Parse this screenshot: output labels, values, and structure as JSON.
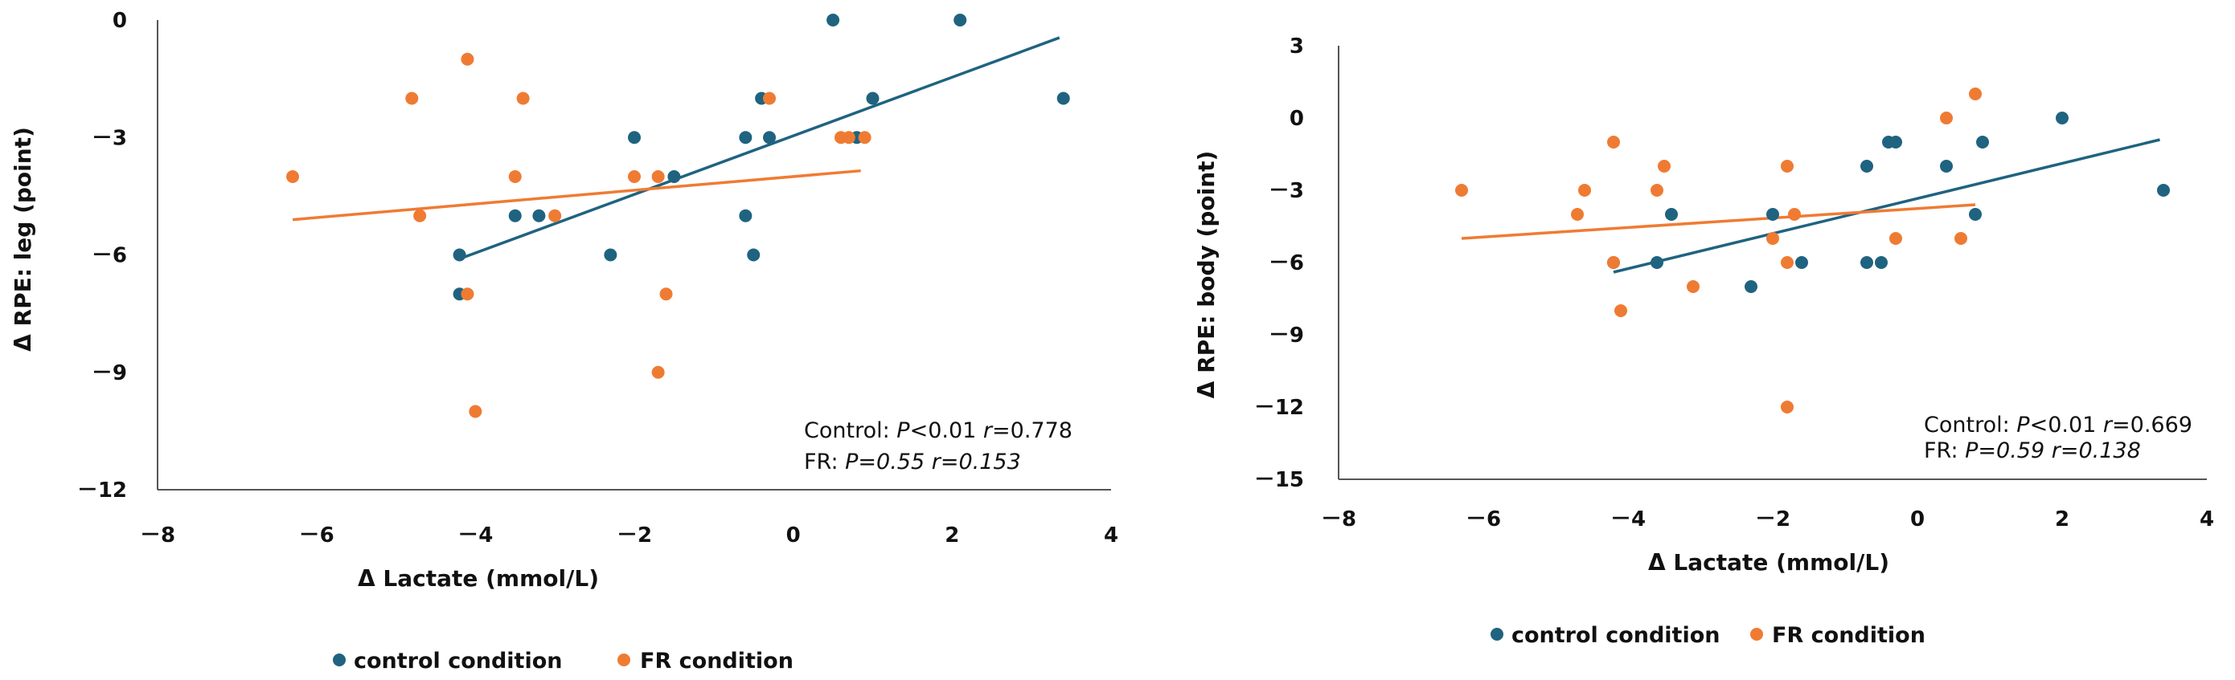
{
  "colors": {
    "control": "#1f6380",
    "fr": "#ef7b33",
    "axis": "#555555",
    "text": "#111111"
  },
  "chart_data": [
    {
      "type": "scatter",
      "xlabel": "Δ Lactate (mmol/L)",
      "ylabel": "Δ RPE: leg (point)",
      "xlim": [
        -8,
        4
      ],
      "ylim": [
        -12,
        0
      ],
      "xticks": [
        -8,
        -6,
        -4,
        -2,
        0,
        2,
        4
      ],
      "xtick_labels": [
        "－8",
        "－6",
        "－4",
        "－2",
        "0",
        "2",
        "4"
      ],
      "yticks": [
        0,
        -3,
        -6,
        -9,
        -12
      ],
      "ytick_labels": [
        "0",
        "－3",
        "－6",
        "－9",
        "－12"
      ],
      "legend": {
        "position": "bottom",
        "items": [
          "control condition",
          "FR condition"
        ]
      },
      "stats": {
        "control": {
          "prefix": "Control: ",
          "p_label": "P",
          "p_val": "<0.01 ",
          "r_label": "r",
          "r_val": "=0.778"
        },
        "fr": {
          "prefix": "FR: ",
          "text": "P=0.55 r=0.153"
        }
      },
      "series": [
        {
          "name": "control condition",
          "points": [
            [
              0.5,
              0
            ],
            [
              2.1,
              0
            ],
            [
              3.4,
              -2
            ],
            [
              1.0,
              -2
            ],
            [
              -0.4,
              -2
            ],
            [
              -2.0,
              -3
            ],
            [
              -0.6,
              -3
            ],
            [
              -0.3,
              -3
            ],
            [
              0.8,
              -3
            ],
            [
              -1.5,
              -4
            ],
            [
              -3.5,
              -5
            ],
            [
              -3.2,
              -5
            ],
            [
              -0.6,
              -5
            ],
            [
              -4.2,
              -6
            ],
            [
              -2.3,
              -6
            ],
            [
              -0.5,
              -6
            ],
            [
              -4.2,
              -7
            ]
          ],
          "trend": [
            [
              -4.2,
              -6.1
            ],
            [
              3.35,
              -0.45
            ]
          ]
        },
        {
          "name": "FR condition",
          "points": [
            [
              -4.1,
              -1
            ],
            [
              -4.8,
              -2
            ],
            [
              -3.4,
              -2
            ],
            [
              -0.3,
              -2
            ],
            [
              0.6,
              -3
            ],
            [
              0.7,
              -3
            ],
            [
              0.9,
              -3
            ],
            [
              -6.3,
              -4
            ],
            [
              -3.5,
              -4
            ],
            [
              -2.0,
              -4
            ],
            [
              -1.7,
              -4
            ],
            [
              -4.7,
              -5
            ],
            [
              -3.0,
              -5
            ],
            [
              -4.1,
              -7
            ],
            [
              -1.6,
              -7
            ],
            [
              -1.7,
              -9
            ],
            [
              -4.0,
              -10
            ]
          ],
          "trend": [
            [
              -6.3,
              -5.1
            ],
            [
              0.85,
              -3.85
            ]
          ]
        }
      ]
    },
    {
      "type": "scatter",
      "xlabel": "Δ Lactate (mmol/L)",
      "ylabel": "Δ RPE: body (point)",
      "xlim": [
        -8,
        4
      ],
      "ylim": [
        -15,
        3
      ],
      "xticks": [
        -8,
        -6,
        -4,
        -2,
        0,
        2,
        4
      ],
      "xtick_labels": [
        "－8",
        "－6",
        "－4",
        "－2",
        "0",
        "2",
        "4"
      ],
      "yticks": [
        3,
        0,
        -3,
        -6,
        -9,
        -12,
        -15
      ],
      "ytick_labels": [
        "3",
        "0",
        "－3",
        "－6",
        "－9",
        "－12",
        "－15"
      ],
      "legend": {
        "position": "bottom",
        "items": [
          "control condition",
          "FR condition"
        ]
      },
      "stats": {
        "control": {
          "prefix": "Control: ",
          "p_label": "P",
          "p_val": "<0.01 ",
          "r_label": "r",
          "r_val": "=0.669"
        },
        "fr": {
          "prefix": "FR: ",
          "text": "P=0.59 r=0.138"
        }
      },
      "series": [
        {
          "name": "control condition",
          "points": [
            [
              2.0,
              0
            ],
            [
              -0.4,
              -1
            ],
            [
              -0.3,
              -1
            ],
            [
              0.9,
              -1
            ],
            [
              -0.7,
              -2
            ],
            [
              0.4,
              -2
            ],
            [
              3.4,
              -3
            ],
            [
              -3.4,
              -4
            ],
            [
              -2.0,
              -4
            ],
            [
              0.8,
              -4
            ],
            [
              -4.2,
              -6
            ],
            [
              -3.6,
              -6
            ],
            [
              -1.6,
              -6
            ],
            [
              -0.7,
              -6
            ],
            [
              -0.5,
              -6
            ],
            [
              -2.3,
              -7
            ]
          ],
          "trend": [
            [
              -4.2,
              -6.4
            ],
            [
              3.35,
              -0.9
            ]
          ]
        },
        {
          "name": "FR condition",
          "points": [
            [
              0.8,
              1
            ],
            [
              0.4,
              0
            ],
            [
              -4.2,
              -1
            ],
            [
              -3.5,
              -2
            ],
            [
              -1.8,
              -2
            ],
            [
              -6.3,
              -3
            ],
            [
              -4.6,
              -3
            ],
            [
              -3.6,
              -3
            ],
            [
              -4.7,
              -4
            ],
            [
              -1.7,
              -4
            ],
            [
              -2.0,
              -5
            ],
            [
              -0.3,
              -5
            ],
            [
              0.6,
              -5
            ],
            [
              -4.2,
              -6
            ],
            [
              -1.8,
              -6
            ],
            [
              -3.1,
              -7
            ],
            [
              -4.1,
              -8
            ],
            [
              -1.8,
              -12
            ]
          ],
          "trend": [
            [
              -6.3,
              -5.0
            ],
            [
              0.8,
              -3.6
            ]
          ]
        }
      ]
    }
  ]
}
